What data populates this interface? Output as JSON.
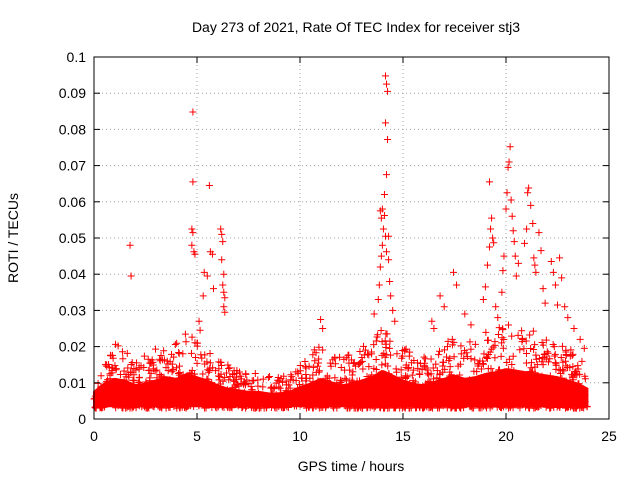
{
  "chart_data": {
    "type": "scatter",
    "title": "Day 273 of 2021, Rate Of TEC Index for receiver stj3",
    "xlabel": "GPS time / hours",
    "ylabel": "ROTI / TECUs",
    "xlim": [
      0,
      25
    ],
    "ylim": [
      0,
      0.1
    ],
    "x_ticks": [
      "0",
      "5",
      "10",
      "15",
      "20",
      "25"
    ],
    "y_ticks": [
      "0",
      "0.01",
      "0.02",
      "0.03",
      "0.04",
      "0.05",
      "0.06",
      "0.07",
      "0.08",
      "0.09",
      "0.1"
    ],
    "grid": true,
    "legend": "none",
    "marker": "plus",
    "series_color": "#ff0000",
    "points": [
      [
        1.75,
        0.048
      ],
      [
        1.8,
        0.0395
      ],
      [
        4.8,
        0.0848
      ],
      [
        4.8,
        0.0655
      ],
      [
        4.75,
        0.0525
      ],
      [
        4.8,
        0.0515
      ],
      [
        4.75,
        0.048
      ],
      [
        4.85,
        0.0462
      ],
      [
        4.9,
        0.0455
      ],
      [
        5.1,
        0.027
      ],
      [
        5.15,
        0.0245
      ],
      [
        5.35,
        0.0405
      ],
      [
        5.3,
        0.034
      ],
      [
        5.5,
        0.0395
      ],
      [
        5.6,
        0.0645
      ],
      [
        5.65,
        0.0462
      ],
      [
        5.75,
        0.0455
      ],
      [
        5.8,
        0.036
      ],
      [
        6.15,
        0.0525
      ],
      [
        6.2,
        0.051
      ],
      [
        6.25,
        0.049
      ],
      [
        6.2,
        0.044
      ],
      [
        6.3,
        0.04
      ],
      [
        6.25,
        0.037
      ],
      [
        6.3,
        0.035
      ],
      [
        6.35,
        0.0335
      ],
      [
        6.3,
        0.031
      ],
      [
        6.35,
        0.0295
      ],
      [
        11.0,
        0.0275
      ],
      [
        11.1,
        0.025
      ],
      [
        13.6,
        0.029
      ],
      [
        13.8,
        0.033
      ],
      [
        13.85,
        0.037
      ],
      [
        13.9,
        0.042
      ],
      [
        13.95,
        0.045
      ],
      [
        13.9,
        0.0575
      ],
      [
        13.95,
        0.0555
      ],
      [
        14.0,
        0.058
      ],
      [
        14.05,
        0.0525
      ],
      [
        14.0,
        0.048
      ],
      [
        14.1,
        0.0562
      ],
      [
        14.15,
        0.0505
      ],
      [
        14.2,
        0.0462
      ],
      [
        14.1,
        0.062
      ],
      [
        14.15,
        0.0948
      ],
      [
        14.2,
        0.0925
      ],
      [
        14.25,
        0.0905
      ],
      [
        14.15,
        0.0818
      ],
      [
        14.25,
        0.0772
      ],
      [
        14.2,
        0.0675
      ],
      [
        14.3,
        0.0505
      ],
      [
        14.3,
        0.044
      ],
      [
        14.35,
        0.038
      ],
      [
        14.4,
        0.034
      ],
      [
        14.5,
        0.03
      ],
      [
        14.6,
        0.027
      ],
      [
        16.4,
        0.027
      ],
      [
        16.5,
        0.025
      ],
      [
        16.8,
        0.034
      ],
      [
        17.0,
        0.031
      ],
      [
        17.45,
        0.0405
      ],
      [
        17.6,
        0.037
      ],
      [
        18.0,
        0.029
      ],
      [
        18.3,
        0.026
      ],
      [
        18.9,
        0.033
      ],
      [
        19.0,
        0.0365
      ],
      [
        19.1,
        0.0425
      ],
      [
        19.2,
        0.0475
      ],
      [
        19.25,
        0.0525
      ],
      [
        19.3,
        0.0555
      ],
      [
        19.35,
        0.05
      ],
      [
        19.4,
        0.0487
      ],
      [
        19.2,
        0.0655
      ],
      [
        19.5,
        0.031
      ],
      [
        19.6,
        0.028
      ],
      [
        19.8,
        0.035
      ],
      [
        19.85,
        0.041
      ],
      [
        19.9,
        0.045
      ],
      [
        20.0,
        0.058
      ],
      [
        20.05,
        0.0625
      ],
      [
        20.1,
        0.0695
      ],
      [
        20.15,
        0.071
      ],
      [
        20.2,
        0.0752
      ],
      [
        20.25,
        0.0605
      ],
      [
        20.3,
        0.056
      ],
      [
        20.35,
        0.052
      ],
      [
        20.4,
        0.049
      ],
      [
        20.45,
        0.045
      ],
      [
        20.5,
        0.0395
      ],
      [
        20.6,
        0.043
      ],
      [
        20.9,
        0.0485
      ],
      [
        21.0,
        0.0525
      ],
      [
        21.05,
        0.0625
      ],
      [
        21.1,
        0.0638
      ],
      [
        21.2,
        0.059
      ],
      [
        21.3,
        0.054
      ],
      [
        21.35,
        0.0445
      ],
      [
        21.4,
        0.0425
      ],
      [
        21.45,
        0.0405
      ],
      [
        21.6,
        0.0515
      ],
      [
        21.7,
        0.0465
      ],
      [
        21.8,
        0.036
      ],
      [
        21.9,
        0.032
      ],
      [
        22.2,
        0.0435
      ],
      [
        22.3,
        0.0405
      ],
      [
        22.4,
        0.037
      ],
      [
        22.5,
        0.0315
      ],
      [
        22.6,
        0.0445
      ],
      [
        22.7,
        0.039
      ],
      [
        22.85,
        0.031
      ],
      [
        23.0,
        0.028
      ],
      [
        23.3,
        0.025
      ],
      [
        23.6,
        0.022
      ],
      [
        23.8,
        0.0195
      ]
    ],
    "dense_band": {
      "description_free": true,
      "x_range": [
        0.0,
        23.95
      ],
      "envelope": [
        [
          0.0,
          0.003,
          0.013
        ],
        [
          0.5,
          0.003,
          0.018
        ],
        [
          1.0,
          0.003,
          0.021
        ],
        [
          1.5,
          0.003,
          0.02
        ],
        [
          2.0,
          0.003,
          0.017
        ],
        [
          2.5,
          0.003,
          0.018
        ],
        [
          3.0,
          0.003,
          0.02
        ],
        [
          3.5,
          0.003,
          0.022
        ],
        [
          4.0,
          0.003,
          0.021
        ],
        [
          4.5,
          0.003,
          0.024
        ],
        [
          5.0,
          0.003,
          0.022
        ],
        [
          5.5,
          0.003,
          0.02
        ],
        [
          6.0,
          0.003,
          0.017
        ],
        [
          6.5,
          0.003,
          0.015
        ],
        [
          7.0,
          0.003,
          0.014
        ],
        [
          7.5,
          0.003,
          0.013
        ],
        [
          8.0,
          0.003,
          0.013
        ],
        [
          8.5,
          0.003,
          0.012
        ],
        [
          9.0,
          0.003,
          0.012
        ],
        [
          9.5,
          0.003,
          0.013
        ],
        [
          10.0,
          0.003,
          0.016
        ],
        [
          10.5,
          0.003,
          0.018
        ],
        [
          11.0,
          0.003,
          0.021
        ],
        [
          11.5,
          0.003,
          0.019
        ],
        [
          12.0,
          0.003,
          0.017
        ],
        [
          12.5,
          0.003,
          0.018
        ],
        [
          13.0,
          0.003,
          0.02
        ],
        [
          13.5,
          0.003,
          0.022
        ],
        [
          14.0,
          0.003,
          0.026
        ],
        [
          14.5,
          0.003,
          0.023
        ],
        [
          15.0,
          0.003,
          0.02
        ],
        [
          15.5,
          0.003,
          0.018
        ],
        [
          16.0,
          0.003,
          0.017
        ],
        [
          16.5,
          0.003,
          0.019
        ],
        [
          17.0,
          0.003,
          0.021
        ],
        [
          17.5,
          0.003,
          0.023
        ],
        [
          18.0,
          0.003,
          0.021
        ],
        [
          18.5,
          0.003,
          0.022
        ],
        [
          19.0,
          0.003,
          0.024
        ],
        [
          19.5,
          0.003,
          0.025
        ],
        [
          20.0,
          0.003,
          0.027
        ],
        [
          20.5,
          0.003,
          0.026
        ],
        [
          21.0,
          0.003,
          0.025
        ],
        [
          21.5,
          0.003,
          0.024
        ],
        [
          22.0,
          0.003,
          0.023
        ],
        [
          22.5,
          0.003,
          0.022
        ],
        [
          23.0,
          0.003,
          0.02
        ],
        [
          23.5,
          0.003,
          0.018
        ],
        [
          23.95,
          0.003,
          0.015
        ]
      ]
    }
  }
}
